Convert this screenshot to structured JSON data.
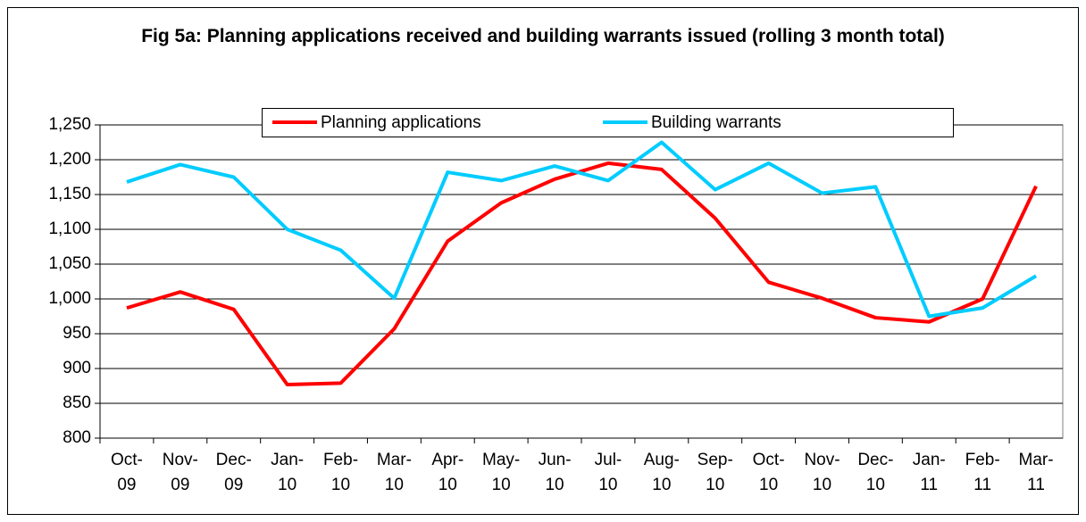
{
  "chart_data": {
    "type": "line",
    "title": "Fig 5a: Planning applications received and building warrants issued (rolling 3 month total)",
    "categories": [
      "Oct-09",
      "Nov-09",
      "Dec-09",
      "Jan-10",
      "Feb-10",
      "Mar-10",
      "Apr-10",
      "May-10",
      "Jun-10",
      "Jul-10",
      "Aug-10",
      "Sep-10",
      "Oct-10",
      "Nov-10",
      "Dec-10",
      "Jan-11",
      "Feb-11",
      "Mar-11"
    ],
    "series": [
      {
        "name": "Planning applications",
        "color": "#ff0000",
        "values": [
          987,
          1010,
          985,
          877,
          879,
          957,
          1083,
          1138,
          1172,
          1195,
          1186,
          1116,
          1024,
          1001,
          973,
          967,
          1000,
          1162
        ]
      },
      {
        "name": "Building warrants",
        "color": "#00ccff",
        "values": [
          1168,
          1193,
          1175,
          1100,
          1070,
          1001,
          1182,
          1170,
          1191,
          1170,
          1225,
          1157,
          1195,
          1152,
          1161,
          975,
          987,
          1033
        ]
      }
    ],
    "ylim": [
      800,
      1250
    ],
    "yticks": [
      {
        "value": 800,
        "label": "800"
      },
      {
        "value": 850,
        "label": "850"
      },
      {
        "value": 900,
        "label": "900"
      },
      {
        "value": 950,
        "label": "950"
      },
      {
        "value": 1000,
        "label": "1,000"
      },
      {
        "value": 1050,
        "label": "1,050"
      },
      {
        "value": 1100,
        "label": "1,100"
      },
      {
        "value": 1150,
        "label": "1,150"
      },
      {
        "value": 1200,
        "label": "1,200"
      },
      {
        "value": 1250,
        "label": "1,250"
      }
    ],
    "grid": true,
    "legend": "top"
  }
}
